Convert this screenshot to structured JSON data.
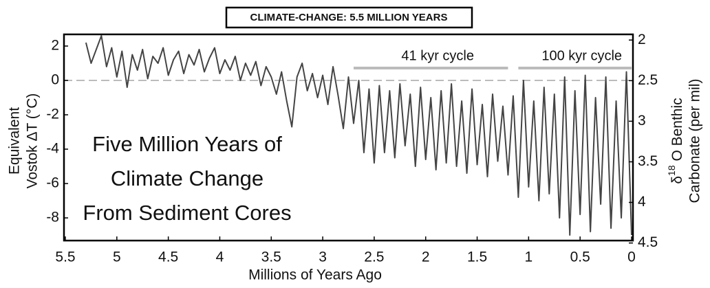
{
  "chart_data": {
    "type": "line",
    "title": "CLIMATE-CHANGE: 5.5 MILLION YEARS",
    "annotation_lines": [
      "Five Million Years of",
      "Climate Change",
      "From Sediment Cores"
    ],
    "xlabel": "Millions of Years Ago",
    "ylabel": [
      "Equivalent",
      "Vostok ΔT (°C)"
    ],
    "y2label": [
      [
        "δ",
        "18",
        " O Benthic"
      ],
      "Carbonate (per mil)"
    ],
    "xlim": [
      5.5,
      0
    ],
    "xticks": [
      5.5,
      5,
      4.5,
      4,
      3.5,
      3,
      2.5,
      2,
      1.5,
      1,
      0.5,
      0
    ],
    "ylim": [
      -9.32,
      2.68
    ],
    "yticks": [
      2,
      0,
      -2,
      -4,
      -6,
      -8
    ],
    "y2lim": [
      4.47,
      1.93
    ],
    "y2ticks": [
      2,
      2.5,
      3,
      3.5,
      4,
      4.5
    ],
    "reference_line": 0,
    "annotations": [
      {
        "text": "41 kyr cycle",
        "x": [
          2.7,
          1.2
        ],
        "y": 0.72
      },
      {
        "text": "100 kyr cycle",
        "x": [
          1.1,
          0
        ],
        "y": 0.72
      }
    ],
    "series": [
      {
        "color": "#444444",
        "x": [
          5.3,
          5.25,
          5.2,
          5.15,
          5.1,
          5.05,
          5,
          4.95,
          4.9,
          4.85,
          4.8,
          4.75,
          4.7,
          4.65,
          4.6,
          4.55,
          4.5,
          4.45,
          4.4,
          4.35,
          4.3,
          4.25,
          4.2,
          4.15,
          4.1,
          4.05,
          4,
          3.95,
          3.9,
          3.85,
          3.8,
          3.75,
          3.7,
          3.65,
          3.6,
          3.55,
          3.5,
          3.45,
          3.4,
          3.35,
          3.3,
          3.25,
          3.2,
          3.15,
          3.1,
          3.05,
          3,
          2.95,
          2.9,
          2.85,
          2.8,
          2.75,
          2.7,
          2.65,
          2.6,
          2.55,
          2.5,
          2.45,
          2.4,
          2.35,
          2.3,
          2.25,
          2.2,
          2.15,
          2.1,
          2.05,
          2,
          1.95,
          1.9,
          1.85,
          1.8,
          1.75,
          1.7,
          1.65,
          1.6,
          1.55,
          1.5,
          1.45,
          1.4,
          1.35,
          1.3,
          1.25,
          1.2,
          1.15,
          1.1,
          1.05,
          1,
          0.95,
          0.9,
          0.85,
          0.8,
          0.75,
          0.7,
          0.65,
          0.6,
          0.55,
          0.5,
          0.45,
          0.4,
          0.35,
          0.3,
          0.25,
          0.2,
          0.15,
          0.1,
          0.05,
          0
        ],
        "values": [
          2.2,
          1.0,
          1.8,
          2.6,
          0.8,
          1.9,
          0.2,
          1.7,
          -0.4,
          1.5,
          0.6,
          1.8,
          0.1,
          1.4,
          1.0,
          1.9,
          0.3,
          1.2,
          1.7,
          0.4,
          1.5,
          0.9,
          1.8,
          0.5,
          1.3,
          1.9,
          0.4,
          1.2,
          0.6,
          1.4,
          0.0,
          1.0,
          0.3,
          1.1,
          -0.3,
          0.8,
          0.2,
          -0.8,
          0.5,
          -1.2,
          -2.7,
          0.2,
          1.0,
          -0.6,
          0.4,
          -1.0,
          0.3,
          -1.4,
          0.8,
          -0.9,
          -2.8,
          0.2,
          -2.5,
          0.0,
          -4.2,
          -0.5,
          -4.8,
          -0.3,
          -4.2,
          -0.6,
          -4.5,
          -0.2,
          -3.8,
          -0.8,
          -5.0,
          -0.4,
          -4.6,
          -1.0,
          -5.2,
          -0.6,
          -4.8,
          -0.2,
          -5.0,
          -1.2,
          -5.4,
          -0.5,
          -4.9,
          -1.4,
          -5.6,
          -0.8,
          -4.7,
          -1.5,
          -5.5,
          -0.9,
          -6.8,
          0.0,
          -6.2,
          -1.2,
          -7.0,
          -0.4,
          -6.6,
          -0.8,
          -8.0,
          0.2,
          -9.0,
          -0.6,
          -7.8,
          0.3,
          -8.8,
          -1.0,
          -7.2,
          0.2,
          -8.6,
          -1.2,
          -8.0,
          0.5,
          -9.0
        ]
      }
    ]
  }
}
